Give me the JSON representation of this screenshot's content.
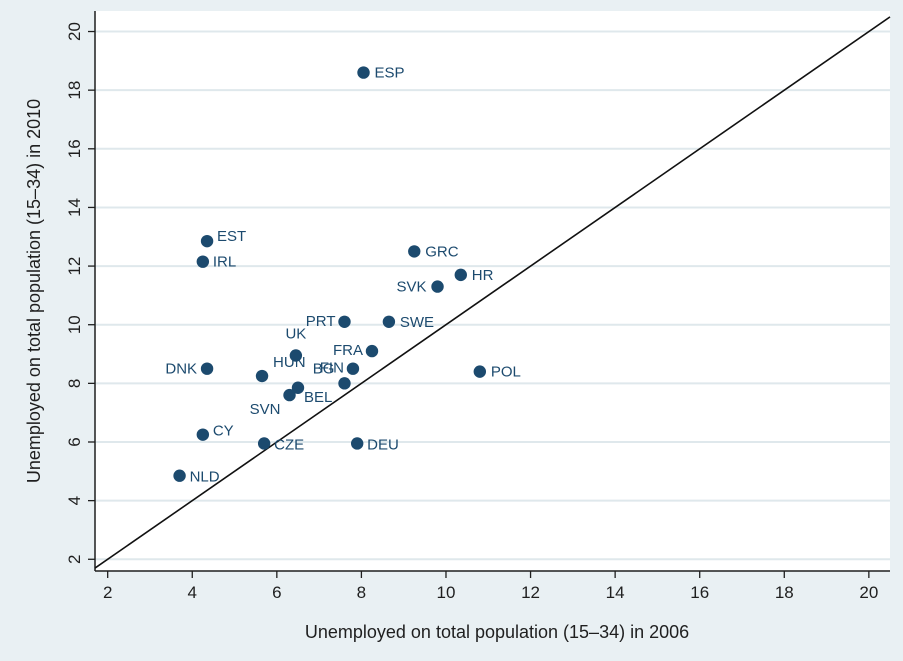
{
  "chart_data": {
    "type": "scatter",
    "xlabel": "Unemployed on total population (15–34) in 2006",
    "ylabel": "Unemployed on total population (15–34) in 2010",
    "xlim": [
      1.7,
      20.5
    ],
    "ylim": [
      1.6,
      20.7
    ],
    "x_ticks": [
      2,
      4,
      6,
      8,
      10,
      12,
      14,
      16,
      18,
      20
    ],
    "y_ticks": [
      2,
      4,
      6,
      8,
      10,
      12,
      14,
      16,
      18,
      20
    ],
    "grid": "horizontal",
    "reference_line": "45-degree line (y = x)",
    "point_color": "#1c4a6e",
    "points": [
      {
        "label": "ESP",
        "x": 8.05,
        "y": 18.6
      },
      {
        "label": "EST",
        "x": 4.35,
        "y": 12.85
      },
      {
        "label": "IRL",
        "x": 4.25,
        "y": 12.15
      },
      {
        "label": "GRC",
        "x": 9.25,
        "y": 12.5
      },
      {
        "label": "HR",
        "x": 10.35,
        "y": 11.7
      },
      {
        "label": "SVK",
        "x": 9.8,
        "y": 11.3
      },
      {
        "label": "PRT",
        "x": 7.6,
        "y": 10.1
      },
      {
        "label": "SWE",
        "x": 8.65,
        "y": 10.1
      },
      {
        "label": "FRA",
        "x": 8.25,
        "y": 9.1
      },
      {
        "label": "UK",
        "x": 6.45,
        "y": 8.95
      },
      {
        "label": "DNK",
        "x": 4.35,
        "y": 8.5
      },
      {
        "label": "HUN",
        "x": 5.65,
        "y": 8.25
      },
      {
        "label": "FIN",
        "x": 7.8,
        "y": 8.5
      },
      {
        "label": "BG",
        "x": 7.6,
        "y": 8.0
      },
      {
        "label": "BEL",
        "x": 6.5,
        "y": 7.85
      },
      {
        "label": "SVN",
        "x": 6.3,
        "y": 7.6
      },
      {
        "label": "POL",
        "x": 10.8,
        "y": 8.4
      },
      {
        "label": "CY",
        "x": 4.25,
        "y": 6.25
      },
      {
        "label": "CZE",
        "x": 5.7,
        "y": 5.95
      },
      {
        "label": "DEU",
        "x": 7.9,
        "y": 5.95
      },
      {
        "label": "NLD",
        "x": 3.7,
        "y": 4.85
      }
    ]
  }
}
